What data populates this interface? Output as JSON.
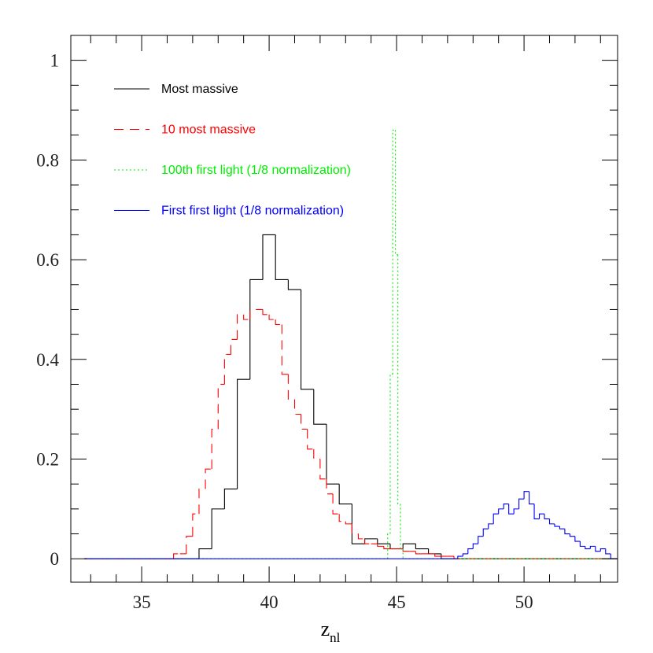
{
  "chart_data": {
    "type": "step-histogram",
    "xlabel": "z",
    "xlabel_subscript": "nl",
    "xlim": [
      32.22,
      53.67
    ],
    "ylim": [
      -0.047,
      1.05
    ],
    "xticks": [
      35,
      40,
      45,
      50
    ],
    "xminorticks": [
      33,
      34,
      36,
      37,
      38,
      39,
      41,
      42,
      43,
      44,
      46,
      47,
      48,
      49,
      51,
      52,
      53
    ],
    "yticks": [
      0,
      0.2,
      0.4,
      0.6,
      0.8,
      1
    ],
    "yminorticks": [
      0.05,
      0.1,
      0.15,
      0.25,
      0.3,
      0.35,
      0.45,
      0.5,
      0.55,
      0.65,
      0.7,
      0.75,
      0.85,
      0.9,
      0.95,
      1.05
    ],
    "series": [
      {
        "name": "Most massive",
        "color": "#000000",
        "dash": "none",
        "bins": [
          32.75,
          37.25,
          37.75,
          38.25,
          38.75,
          39.25,
          39.75,
          40.25,
          40.75,
          41.25,
          41.75,
          42.25,
          42.75,
          43.25,
          43.75,
          44.25,
          44.75,
          45.25,
          45.75,
          46.25,
          46.75,
          53.67
        ],
        "values": [
          0,
          0.02,
          0.1,
          0.14,
          0.36,
          0.56,
          0.65,
          0.56,
          0.54,
          0.34,
          0.27,
          0.15,
          0.11,
          0.03,
          0.04,
          0.03,
          0.02,
          0.03,
          0.02,
          0.01,
          0
        ]
      },
      {
        "name": "10 most massive",
        "color": "#ff0000",
        "dash": "12 8",
        "bins": [
          32.75,
          36.25,
          36.5,
          36.75,
          37.0,
          37.25,
          37.5,
          37.75,
          38.0,
          38.25,
          38.5,
          38.75,
          39.0,
          39.25,
          39.5,
          39.75,
          40.0,
          40.25,
          40.5,
          40.75,
          41.0,
          41.25,
          41.5,
          41.75,
          42.0,
          42.25,
          42.5,
          42.75,
          43.0,
          43.25,
          43.5,
          43.75,
          44.0,
          44.25,
          44.5,
          44.75,
          45.0,
          45.25,
          45.5,
          45.75,
          46.0,
          46.25,
          46.5,
          46.75,
          47.0,
          47.25,
          53.67
        ],
        "values": [
          0,
          0.01,
          0.01,
          0.045,
          0.09,
          0.14,
          0.18,
          0.26,
          0.35,
          0.41,
          0.44,
          0.49,
          0.48,
          0.5,
          0.5,
          0.49,
          0.48,
          0.47,
          0.37,
          0.32,
          0.29,
          0.26,
          0.22,
          0.2,
          0.16,
          0.13,
          0.09,
          0.075,
          0.07,
          0.05,
          0.04,
          0.03,
          0.03,
          0.025,
          0.02,
          0.02,
          0.02,
          0.015,
          0.015,
          0.01,
          0.01,
          0.01,
          0.005,
          0.005,
          0.005,
          0
        ]
      },
      {
        "name": "100th first light (1/8 normalization)",
        "color": "#00ee00",
        "dash": "2 3",
        "bins": [
          32.75,
          44.65,
          44.75,
          44.85,
          44.95,
          45.05,
          45.15,
          45.25,
          53.67
        ],
        "values": [
          0,
          0.05,
          0.37,
          0.86,
          0.61,
          0.11,
          0.02,
          0
        ]
      },
      {
        "name": "First first light (1/8 normalization)",
        "color": "#0000ff",
        "dash": "none",
        "bins": [
          32.75,
          47.4,
          47.6,
          47.8,
          48.0,
          48.2,
          48.4,
          48.6,
          48.8,
          49.0,
          49.2,
          49.4,
          49.6,
          49.8,
          50.0,
          50.2,
          50.4,
          50.6,
          50.8,
          51.0,
          51.2,
          51.4,
          51.6,
          51.8,
          52.0,
          52.2,
          52.4,
          52.6,
          52.8,
          53.0,
          53.2,
          53.4,
          53.67
        ],
        "values": [
          0,
          0.005,
          0.01,
          0.02,
          0.03,
          0.045,
          0.06,
          0.07,
          0.09,
          0.1,
          0.11,
          0.09,
          0.1,
          0.12,
          0.135,
          0.11,
          0.08,
          0.09,
          0.08,
          0.07,
          0.065,
          0.06,
          0.05,
          0.045,
          0.035,
          0.025,
          0.02,
          0.025,
          0.015,
          0.02,
          0.01,
          0
        ]
      }
    ]
  }
}
